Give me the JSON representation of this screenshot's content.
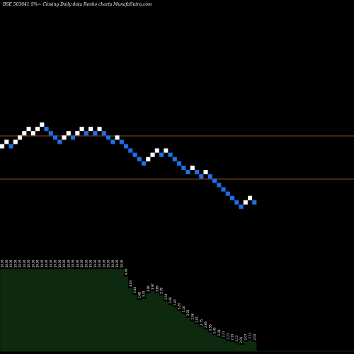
{
  "chart_data": {
    "type": "renko",
    "title": "BSE 503641 S%~  Closing Daily data  Renko  charts MunafaSutra.com",
    "colors": {
      "background": "#000000",
      "up_brick": "#ffffff",
      "down_brick": "#1f6fe5",
      "reference_line": "#8b4a1e",
      "area_fill": "#0e2a0e"
    },
    "reference_lines": [
      1,
      3
    ],
    "bricks": [
      {
        "level": 0,
        "dir": "up"
      },
      {
        "level": 1,
        "dir": "up"
      },
      {
        "level": 0,
        "dir": "down"
      },
      {
        "level": 1,
        "dir": "up"
      },
      {
        "level": 2,
        "dir": "up"
      },
      {
        "level": 3,
        "dir": "up"
      },
      {
        "level": 4,
        "dir": "up"
      },
      {
        "level": 3,
        "dir": "up"
      },
      {
        "level": 4,
        "dir": "up"
      },
      {
        "level": 5,
        "dir": "up"
      },
      {
        "level": 4,
        "dir": "down"
      },
      {
        "level": 3,
        "dir": "down"
      },
      {
        "level": 2,
        "dir": "down"
      },
      {
        "level": 1,
        "dir": "down"
      },
      {
        "level": 2,
        "dir": "up"
      },
      {
        "level": 3,
        "dir": "up"
      },
      {
        "level": 2,
        "dir": "down"
      },
      {
        "level": 3,
        "dir": "up"
      },
      {
        "level": 4,
        "dir": "up"
      },
      {
        "level": 3,
        "dir": "down"
      },
      {
        "level": 4,
        "dir": "up"
      },
      {
        "level": 3,
        "dir": "down"
      },
      {
        "level": 4,
        "dir": "up"
      },
      {
        "level": 3,
        "dir": "down"
      },
      {
        "level": 2,
        "dir": "down"
      },
      {
        "level": 1,
        "dir": "down"
      },
      {
        "level": 2,
        "dir": "up"
      },
      {
        "level": 1,
        "dir": "down"
      },
      {
        "level": 0,
        "dir": "down"
      },
      {
        "level": -1,
        "dir": "down"
      },
      {
        "level": -2,
        "dir": "down"
      },
      {
        "level": -3,
        "dir": "down"
      },
      {
        "level": -4,
        "dir": "down"
      },
      {
        "level": -3,
        "dir": "up"
      },
      {
        "level": -2,
        "dir": "up"
      },
      {
        "level": -1,
        "dir": "up"
      },
      {
        "level": -2,
        "dir": "down"
      },
      {
        "level": -1,
        "dir": "up"
      },
      {
        "level": -2,
        "dir": "down"
      },
      {
        "level": -3,
        "dir": "down"
      },
      {
        "level": -4,
        "dir": "down"
      },
      {
        "level": -5,
        "dir": "down"
      },
      {
        "level": -6,
        "dir": "down"
      },
      {
        "level": -5,
        "dir": "up"
      },
      {
        "level": -6,
        "dir": "down"
      },
      {
        "level": -7,
        "dir": "down"
      },
      {
        "level": -6,
        "dir": "up"
      },
      {
        "level": -7,
        "dir": "down"
      },
      {
        "level": -8,
        "dir": "down"
      },
      {
        "level": -9,
        "dir": "down"
      },
      {
        "level": -10,
        "dir": "down"
      },
      {
        "level": -11,
        "dir": "down"
      },
      {
        "level": -12,
        "dir": "down"
      },
      {
        "level": -13,
        "dir": "down"
      },
      {
        "level": -14,
        "dir": "down"
      },
      {
        "level": -13,
        "dir": "up"
      },
      {
        "level": -12,
        "dir": "up"
      },
      {
        "level": -13,
        "dir": "down"
      }
    ],
    "lower_panel": {
      "values": [
        0,
        0,
        0,
        0,
        0,
        0,
        0,
        0,
        0,
        0,
        0,
        0,
        0,
        0,
        0,
        0,
        0,
        0,
        0,
        0,
        0,
        0,
        0,
        0,
        0,
        0,
        0,
        0,
        -10,
        -26,
        -35,
        -42,
        -40,
        -33,
        -30,
        -33,
        -36,
        -44,
        -49,
        -52,
        -57,
        -61,
        -66,
        -71,
        -75,
        -79,
        -82,
        -86,
        -90,
        -93,
        -95,
        -98,
        -99,
        -101,
        -103,
        -99,
        -97,
        -99
      ],
      "labels": [
        "10.95",
        "10.95",
        "10.95",
        "10.95",
        "10.95",
        "10.95",
        "10.95",
        "10.95",
        "10.95",
        "10.95",
        "10.95",
        "10.95",
        "10.95",
        "10.95",
        "10.95",
        "10.95",
        "10.95",
        "10.95",
        "10.95",
        "10.95",
        "10.95",
        "10.95",
        "10.95",
        "10.95",
        "10.95",
        "10.95",
        "10.95",
        "10.95",
        "4.45",
        "4.03",
        "3.84",
        "3.68",
        "3.75",
        "3.96",
        "3.97",
        "3.85",
        "3.79",
        "3.59",
        "3.46",
        "3.40",
        "3.26",
        "3.18",
        "3.05",
        "2.96",
        "2.81",
        "2.75",
        "2.66",
        "2.56",
        "2.45",
        "2.38",
        "2.31",
        "2.23",
        "2.19",
        "2.13",
        "2.06",
        "2.07",
        "2.12",
        "2.02"
      ],
      "ylim": [
        -112,
        0
      ]
    }
  }
}
